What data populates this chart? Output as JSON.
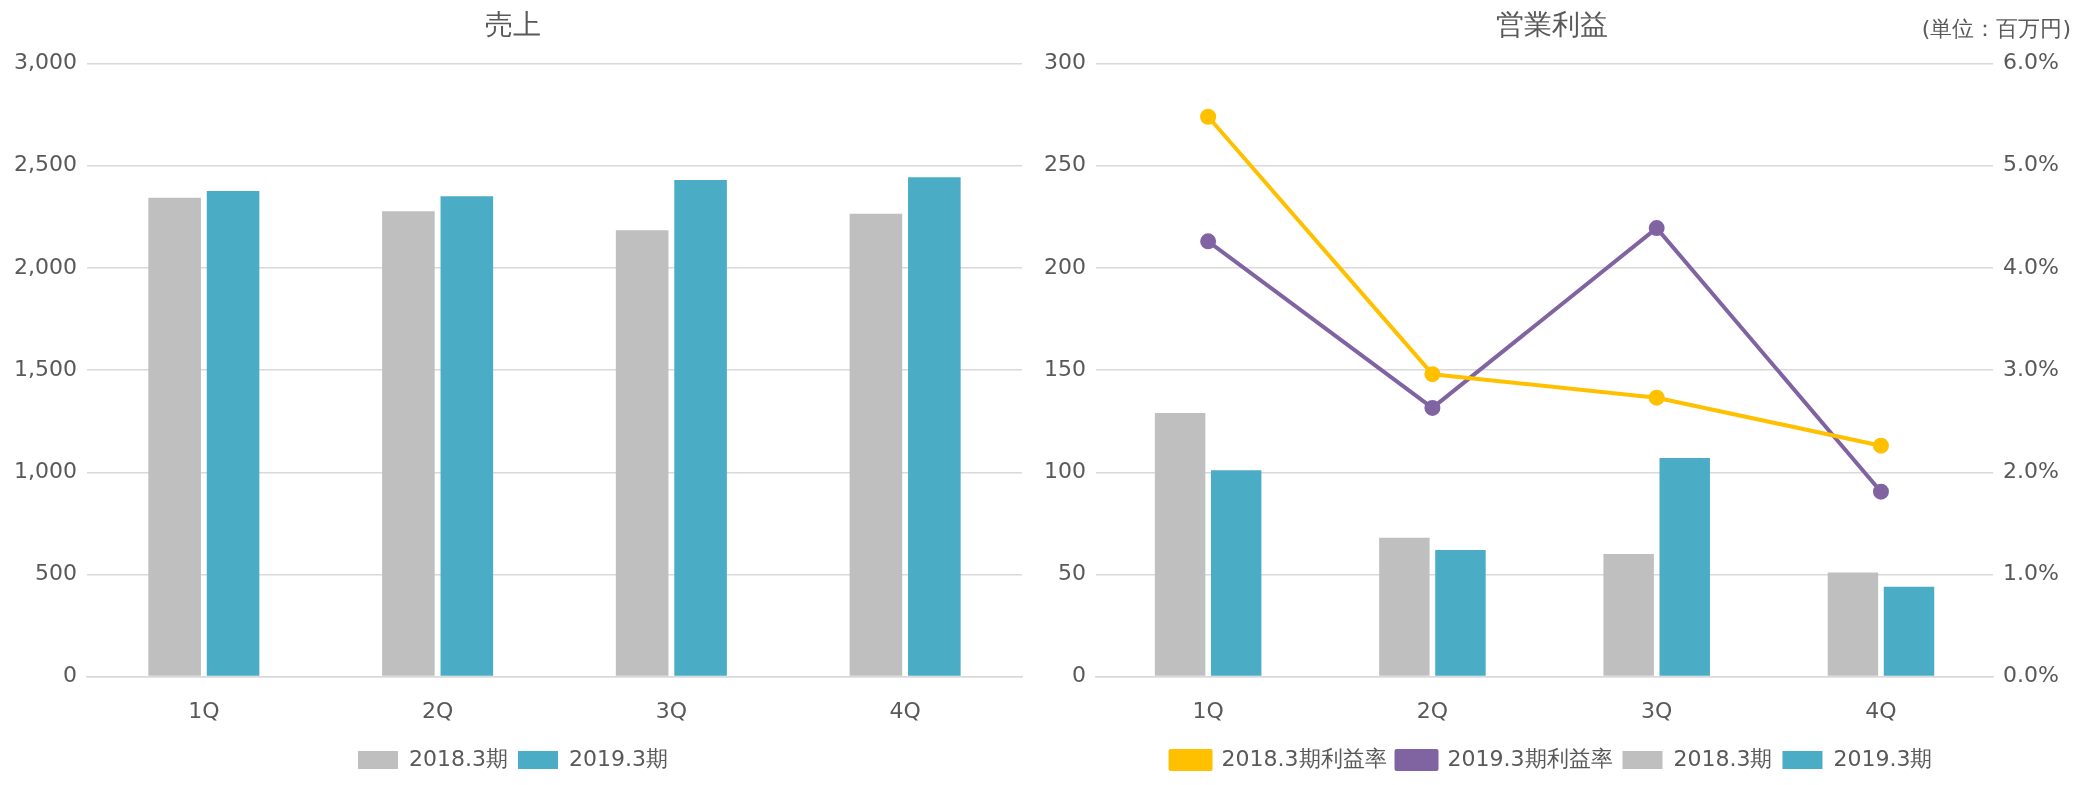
{
  "chart_data": [
    {
      "type": "bar",
      "title": "売上",
      "categories": [
        "1Q",
        "2Q",
        "3Q",
        "4Q"
      ],
      "series": [
        {
          "name": "2018.3期",
          "color": "#bfbfbf",
          "values": [
            2344,
            2278,
            2185,
            2265
          ]
        },
        {
          "name": "2019.3期",
          "color": "#4bacc6",
          "values": [
            2377,
            2351,
            2430,
            2444
          ]
        }
      ],
      "ylim": [
        0,
        3000
      ],
      "yticks": [
        0,
        {
          "value": 500,
          "label": "500"
        },
        {
          "value": 1000,
          "label": "1,000"
        },
        {
          "value": 1500,
          "label": "1,500"
        },
        {
          "value": 2000,
          "label": "2,000"
        },
        {
          "value": 2500,
          "label": "2,500"
        },
        {
          "value": 3000,
          "label": "3,000"
        }
      ],
      "grid": "y",
      "legend": "bottom"
    },
    {
      "type": "bar",
      "title": "営業利益",
      "categories": [
        "1Q",
        "2Q",
        "3Q",
        "4Q"
      ],
      "series": [
        {
          "name": "2018.3期",
          "color": "#bfbfbf",
          "values": [
            129,
            68,
            60,
            51
          ]
        },
        {
          "name": "2019.3期",
          "color": "#4bacc6",
          "values": [
            101,
            62,
            107,
            44
          ]
        },
        {
          "name": "2018.3期利益率",
          "type": "line",
          "axis": "y2",
          "color": "#ffc000",
          "values": [
            5.48,
            2.96,
            2.73,
            2.26
          ]
        },
        {
          "name": "2019.3期利益率",
          "type": "line",
          "axis": "y2",
          "color": "#8064a2",
          "values": [
            4.26,
            2.63,
            4.39,
            1.81
          ]
        }
      ],
      "ylim": [
        0,
        300
      ],
      "yticks": [
        0,
        50,
        100,
        150,
        200,
        250,
        300
      ],
      "y2lim": [
        0,
        6
      ],
      "y2ticks": [
        {
          "value": 0,
          "label": "0.0%"
        },
        {
          "value": 1,
          "label": "1.0%"
        },
        {
          "value": 2,
          "label": "2.0%"
        },
        {
          "value": 3,
          "label": "3.0%"
        },
        {
          "value": 4,
          "label": "4.0%"
        },
        {
          "value": 5,
          "label": "5.0%"
        },
        {
          "value": 6,
          "label": "6.0%"
        }
      ],
      "grid": "y",
      "legend": "bottom",
      "marker": "circle",
      "annotations": [
        "(単位：百万円)"
      ]
    }
  ]
}
